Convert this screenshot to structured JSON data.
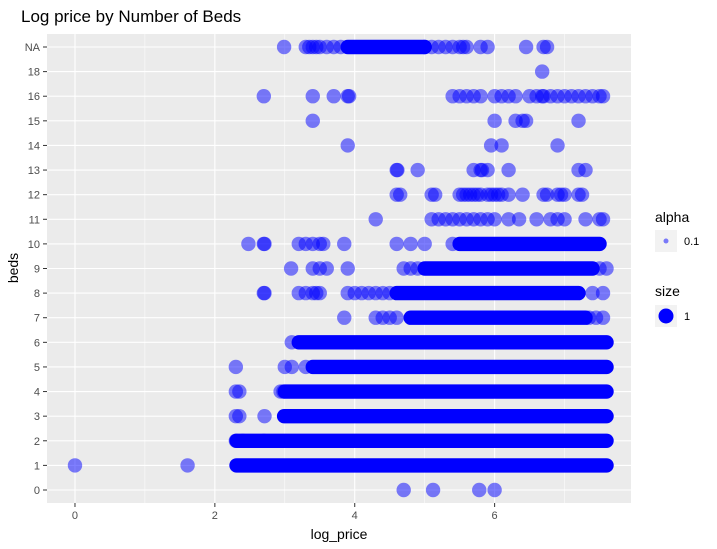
{
  "colors": {
    "panel": "#ebebeb",
    "grid_major": "#ffffff",
    "point": "#0000ff",
    "legend_key_bg": "#f2f2f2"
  },
  "chart_data": {
    "type": "scatter",
    "title": "Log price by Number of Beds",
    "xlabel": "log_price",
    "ylabel": "beds",
    "xlim": [
      -0.4,
      7.95
    ],
    "x_ticks": [
      0,
      2,
      4,
      6
    ],
    "x_tick_labels": [
      "0",
      "2",
      "4",
      "6"
    ],
    "y_categories": [
      "0",
      "1",
      "2",
      "3",
      "4",
      "5",
      "6",
      "7",
      "8",
      "9",
      "10",
      "11",
      "12",
      "13",
      "14",
      "15",
      "16",
      "18",
      "NA"
    ],
    "grid": true,
    "point_color": "#0000ff",
    "point_opacity": 0.5,
    "legend": {
      "position": "right",
      "groups": [
        {
          "title": "alpha",
          "label": "0.1"
        },
        {
          "title": "size",
          "label": "1"
        }
      ]
    },
    "dense_ranges": [
      {
        "y": "1",
        "from": 2.31,
        "to": 7.6
      },
      {
        "y": "2",
        "from": 2.31,
        "to": 7.6
      },
      {
        "y": "3",
        "from": 2.99,
        "to": 7.6
      },
      {
        "y": "4",
        "from": 3.0,
        "to": 7.6
      },
      {
        "y": "5",
        "from": 3.4,
        "to": 7.6
      },
      {
        "y": "6",
        "from": 3.2,
        "to": 7.6
      },
      {
        "y": "7",
        "from": 4.8,
        "to": 7.3
      },
      {
        "y": "8",
        "from": 4.6,
        "to": 7.2
      },
      {
        "y": "9",
        "from": 5.0,
        "to": 7.4
      },
      {
        "y": "10",
        "from": 5.5,
        "to": 7.5
      },
      {
        "y": "NA",
        "from": 3.9,
        "to": 5.0
      }
    ],
    "points": [
      {
        "y": "0",
        "x": [
          4.7,
          5.12,
          5.78,
          6.0
        ]
      },
      {
        "y": "1",
        "x": [
          0.0,
          1.61
        ]
      },
      {
        "y": "2",
        "x": [
          2.3,
          2.4,
          2.7
        ]
      },
      {
        "y": "3",
        "x": [
          2.3,
          2.35,
          2.71
        ]
      },
      {
        "y": "4",
        "x": [
          2.3,
          2.35,
          2.94,
          2.98
        ]
      },
      {
        "y": "5",
        "x": [
          2.3,
          3.0,
          3.1,
          3.3
        ]
      },
      {
        "y": "6",
        "x": [
          3.1
        ]
      },
      {
        "y": "7",
        "x": [
          3.85,
          4.3,
          4.4,
          4.5,
          4.6,
          7.35,
          7.45,
          7.55
        ]
      },
      {
        "y": "8",
        "x": [
          2.7,
          2.71,
          3.2,
          3.3,
          3.4,
          3.45,
          3.5,
          3.9,
          4.0,
          4.1,
          4.2,
          4.3,
          4.4,
          4.5,
          7.4,
          7.55
        ]
      },
      {
        "y": "9",
        "x": [
          3.09,
          3.4,
          3.5,
          3.6,
          3.9,
          4.7,
          4.8,
          4.9,
          7.5,
          7.6
        ]
      },
      {
        "y": "10",
        "x": [
          2.48,
          2.7,
          2.71,
          3.2,
          3.3,
          3.4,
          3.5,
          3.55,
          3.85,
          4.6,
          4.8,
          5.0,
          5.4
        ]
      },
      {
        "y": "11",
        "x": [
          4.3,
          5.1,
          5.2,
          5.3,
          5.4,
          5.5,
          5.6,
          5.7,
          5.8,
          5.9,
          6.0,
          6.2,
          6.35,
          6.6,
          6.8,
          6.9,
          7.0,
          7.3,
          7.5,
          7.55
        ]
      },
      {
        "y": "12",
        "x": [
          4.6,
          4.65,
          5.1,
          5.15,
          5.5,
          5.55,
          5.6,
          5.65,
          5.7,
          5.75,
          5.8,
          5.9,
          5.95,
          6.0,
          6.05,
          6.1,
          6.2,
          6.4,
          6.7,
          6.75,
          6.9,
          6.95,
          7.0,
          7.2,
          7.25
        ]
      },
      {
        "y": "13",
        "x": [
          4.6,
          4.61,
          4.9,
          5.7,
          5.8,
          5.82,
          5.9,
          6.2,
          7.2,
          7.3
        ]
      },
      {
        "y": "14",
        "x": [
          3.9,
          5.95,
          6.1,
          6.9
        ]
      },
      {
        "y": "15",
        "x": [
          3.4,
          6.0,
          6.3,
          6.4,
          6.45,
          7.2
        ]
      },
      {
        "y": "16",
        "x": [
          2.7,
          3.4,
          3.7,
          3.9,
          3.92,
          5.4,
          5.5,
          5.6,
          5.7,
          5.8,
          6.0,
          6.1,
          6.2,
          6.3,
          6.5,
          6.6,
          6.68,
          6.7,
          6.8,
          6.9,
          7.0,
          7.1,
          7.2,
          7.3,
          7.4,
          7.5,
          7.55
        ]
      },
      {
        "y": "18",
        "x": [
          6.68
        ]
      },
      {
        "y": "NA",
        "x": [
          2.99,
          3.3,
          3.35,
          3.4,
          3.45,
          3.5,
          3.6,
          3.7,
          3.8,
          5.0,
          5.1,
          5.2,
          5.3,
          5.4,
          5.5,
          5.55,
          5.6,
          5.8,
          5.9,
          6.45,
          6.7,
          6.75
        ]
      }
    ]
  }
}
